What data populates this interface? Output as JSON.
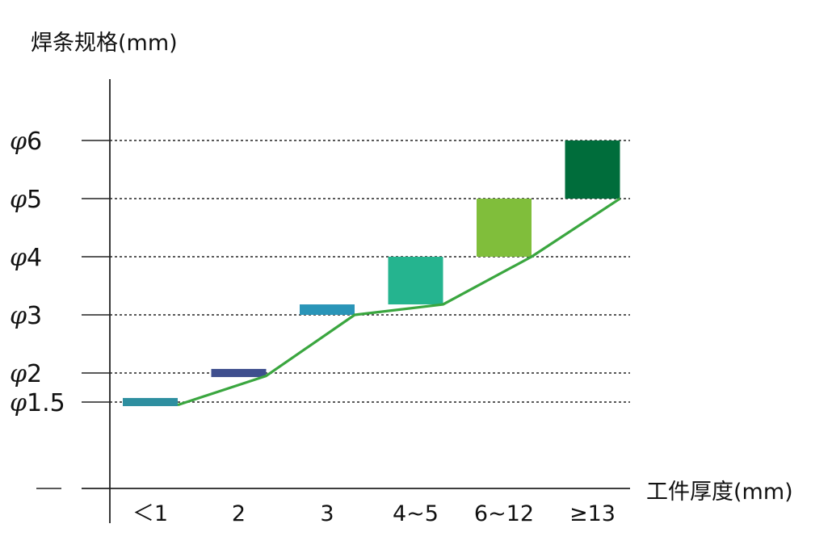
{
  "chart_data": {
    "type": "bar",
    "ylabel": "焊条规格(mm)",
    "xlabel": "工件厚度(mm)",
    "y_symbol": "φ",
    "y_ticks": [
      {
        "label": "1.5",
        "value": 1.5
      },
      {
        "label": "2",
        "value": 2
      },
      {
        "label": "3",
        "value": 3
      },
      {
        "label": "4",
        "value": 4
      },
      {
        "label": "5",
        "value": 5
      },
      {
        "label": "6",
        "value": 6
      }
    ],
    "ylim": [
      0.4,
      6.6
    ],
    "categories": [
      "＜1",
      "2",
      "3",
      "4~5",
      "6~12",
      "≥13"
    ],
    "ranges": [
      {
        "category": "＜1",
        "low": 1.43,
        "high": 1.57,
        "color": "#2e8fa0"
      },
      {
        "category": "2",
        "low": 1.93,
        "high": 2.07,
        "color": "#3f4f8e"
      },
      {
        "category": "3",
        "low": 3.0,
        "high": 3.18,
        "color": "#2a95b8"
      },
      {
        "category": "4~5",
        "low": 3.18,
        "high": 4.0,
        "color": "#25b48f"
      },
      {
        "category": "6~12",
        "low": 4.0,
        "high": 5.0,
        "color": "#80be3b"
      },
      {
        "category": "≥13",
        "low": 5.0,
        "high": 6.0,
        "color": "#006d3b"
      }
    ],
    "line": {
      "color": "#3aa63f",
      "points": [
        {
          "category": "＜1",
          "value": 1.45
        },
        {
          "category": "2",
          "value": 1.95
        },
        {
          "category": "3",
          "value": 3.0
        },
        {
          "category": "4~5",
          "value": 3.18
        },
        {
          "category": "6~12",
          "value": 4.0
        },
        {
          "category": "≥13",
          "value": 5.0
        }
      ]
    },
    "grid": "horizontal dotted"
  }
}
